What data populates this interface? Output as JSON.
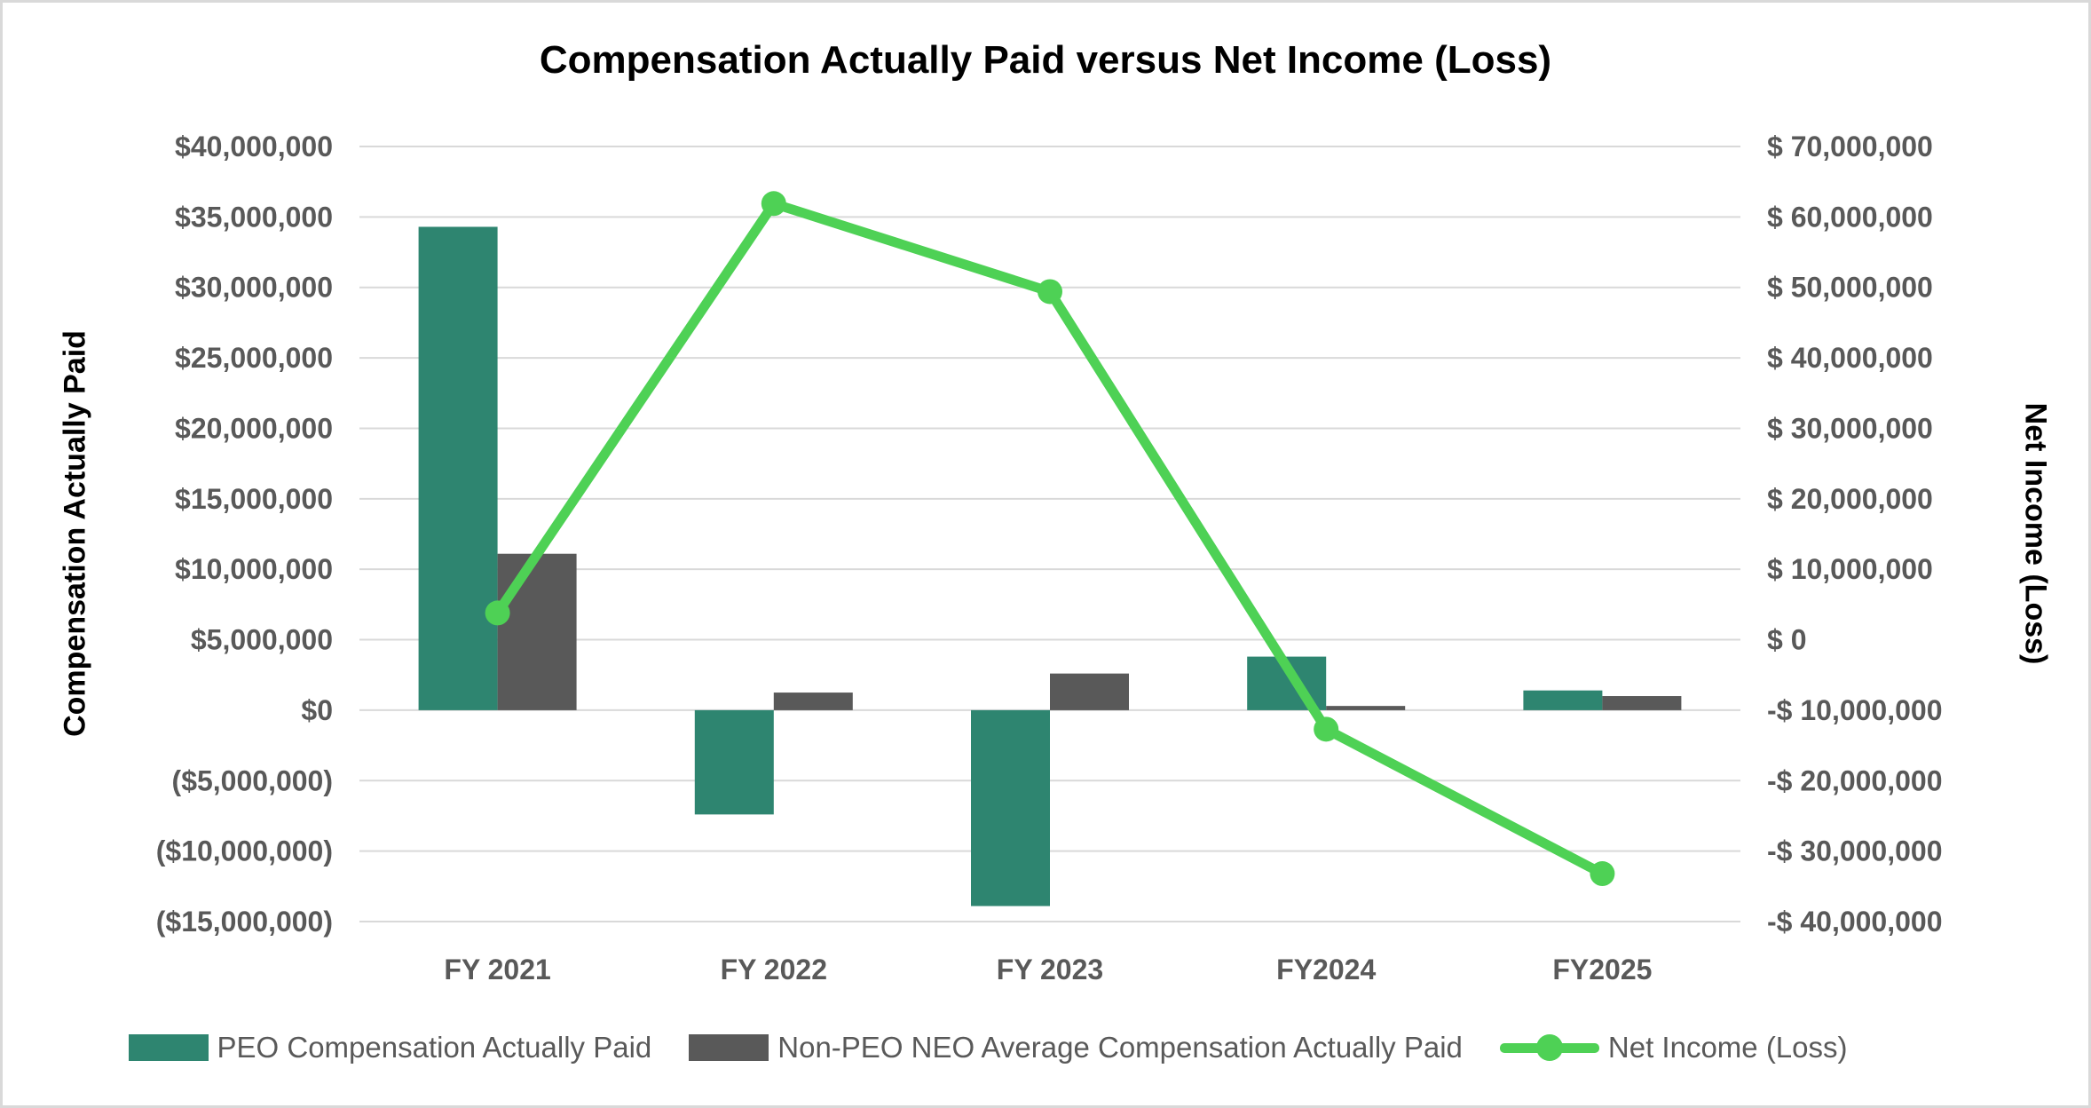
{
  "chart_data": {
    "type": "combo",
    "title": "Compensation Actually Paid versus Net Income (Loss)",
    "categories": [
      "FY 2021",
      "FY 2022",
      "FY 2023",
      "FY2024",
      "FY2025"
    ],
    "series": [
      {
        "name": "PEO Compensation Actually Paid",
        "type": "bar",
        "axis": "left",
        "color": "#2E8570",
        "values": [
          34300000,
          -7400000,
          -13900000,
          3800000,
          1400000
        ]
      },
      {
        "name": "Non-PEO NEO Average Compensation Actually Paid",
        "type": "bar",
        "axis": "left",
        "color": "#595959",
        "values": [
          11100000,
          1250000,
          2600000,
          300000,
          1000000
        ]
      },
      {
        "name": "Net Income (Loss)",
        "type": "line",
        "axis": "right",
        "color": "#4ED155",
        "values": [
          3800000,
          61900000,
          49400000,
          -12700000,
          -33200000
        ]
      }
    ],
    "left_axis": {
      "title": "Compensation Actually Paid",
      "min": -15000000,
      "max": 40000000,
      "step": 5000000,
      "tick_labels": [
        "$40,000,000",
        "$35,000,000",
        "$30,000,000",
        "$25,000,000",
        "$20,000,000",
        "$15,000,000",
        "$10,000,000",
        "$5,000,000",
        "$0",
        "($5,000,000)",
        "($10,000,000)",
        "($15,000,000)"
      ]
    },
    "right_axis": {
      "title": "Net Income  (Loss)",
      "min": -40000000,
      "max": 70000000,
      "step": 10000000,
      "tick_labels": [
        "$ 70,000,000",
        "$ 60,000,000",
        "$ 50,000,000",
        "$ 40,000,000",
        "$ 30,000,000",
        "$ 20,000,000",
        "$ 10,000,000",
        "$ 0",
        "-$ 10,000,000",
        "-$ 20,000,000",
        "-$ 30,000,000",
        "-$ 40,000,000"
      ],
      "title_display": "Net Income (Loss)"
    },
    "legend_position": "bottom",
    "grid": true,
    "colors": {
      "gridline": "#D9D9D9",
      "tick_text": "#595959",
      "axis_label_text": "#595959",
      "title_text": "#000000",
      "border": "#D9D9D9",
      "background": "#FFFFFF"
    }
  }
}
